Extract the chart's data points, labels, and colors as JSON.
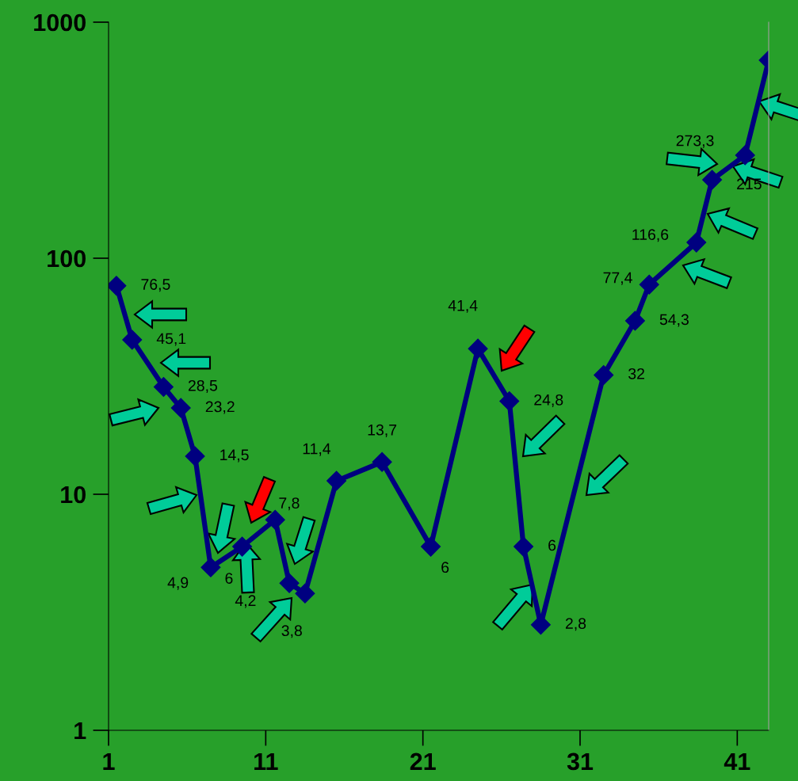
{
  "chart_data": {
    "type": "line",
    "x": [
      1.5,
      2.5,
      4.5,
      5.6,
      6.5,
      7.5,
      9.5,
      11.6,
      12.5,
      13.5,
      15.5,
      18.4,
      21.5,
      24.5,
      26.5,
      27.4,
      28.5,
      32.5,
      34.5,
      35.4,
      38.4,
      39.4,
      41.5,
      43
    ],
    "series": [
      {
        "color": "#000080",
        "values": [
          76.5,
          45.1,
          28.5,
          23.2,
          14.5,
          4.9,
          6,
          7.8,
          4.2,
          3.8,
          11.4,
          13.7,
          6,
          41.4,
          24.8,
          6,
          2.8,
          32,
          54.3,
          77.4,
          116.6,
          215,
          273.3,
          690
        ],
        "value_labels": [
          "76,5",
          "45,1",
          "28,5",
          "23,2",
          "14,5",
          "4,9",
          "6",
          "7,8",
          "4,2",
          "3,8",
          "11,4",
          "13,7",
          "6",
          "41,4",
          "24,8",
          "6",
          "2,8",
          "32",
          "54,3",
          "77,4",
          "116,6",
          "215",
          "273,3",
          null
        ]
      }
    ],
    "log": "y",
    "xlim": [
      1,
      43
    ],
    "xticks": [
      1,
      11,
      21,
      31,
      41
    ],
    "ylim": [
      1,
      1000
    ],
    "yticks": [
      1,
      10,
      100,
      1000
    ],
    "grid": false,
    "legend": false,
    "marker": "diamond",
    "line_style": "solid"
  }
}
